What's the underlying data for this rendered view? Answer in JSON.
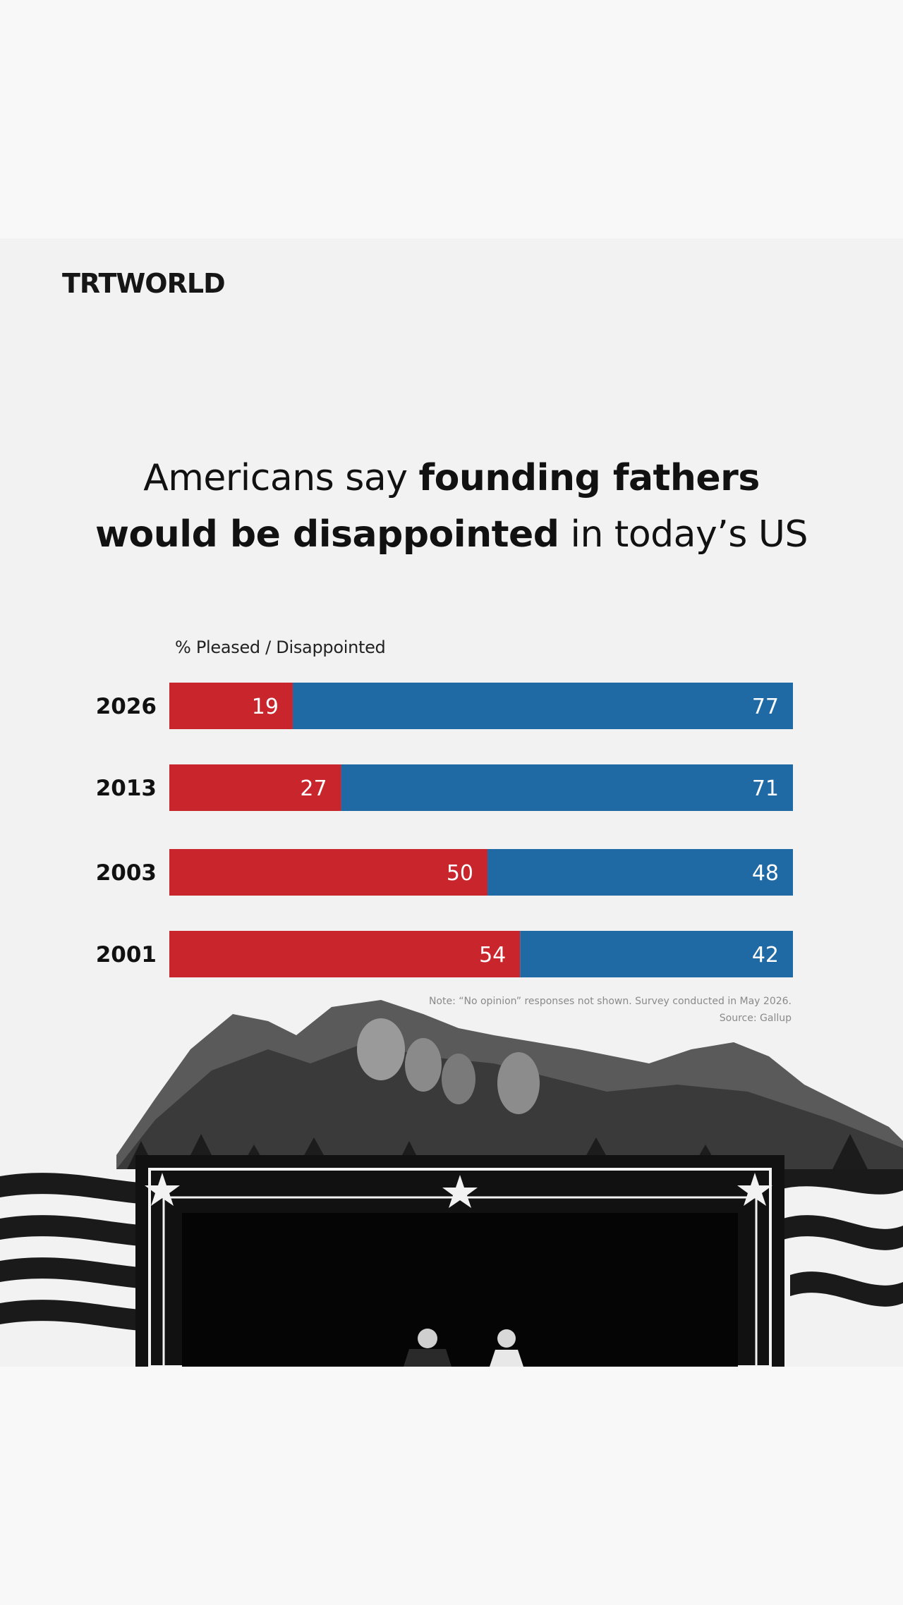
{
  "brand": {
    "logo_text": "TRTWORLD"
  },
  "title": {
    "part1": "Americans say ",
    "bold1": "founding fathers",
    "bold2": "would be disappointed",
    "part2": " in today’s US"
  },
  "colors": {
    "pleased": "#c9252c",
    "disappointed": "#1f6aa5",
    "background": "#f2f2f2"
  },
  "chart_data": {
    "type": "bar",
    "orientation": "horizontal-stacked",
    "subtitle": "% Pleased / Disappointed",
    "categories": [
      "2026",
      "2013",
      "2003",
      "2001"
    ],
    "series": [
      {
        "values": [
          19,
          27,
          50,
          54
        ]
      },
      {
        "values": [
          77,
          71,
          48,
          42
        ]
      }
    ]
  },
  "footnote": {
    "note": "Note: “No opinion” responses not shown. Survey conducted in May 2026.",
    "source": "Source: Gallup"
  }
}
